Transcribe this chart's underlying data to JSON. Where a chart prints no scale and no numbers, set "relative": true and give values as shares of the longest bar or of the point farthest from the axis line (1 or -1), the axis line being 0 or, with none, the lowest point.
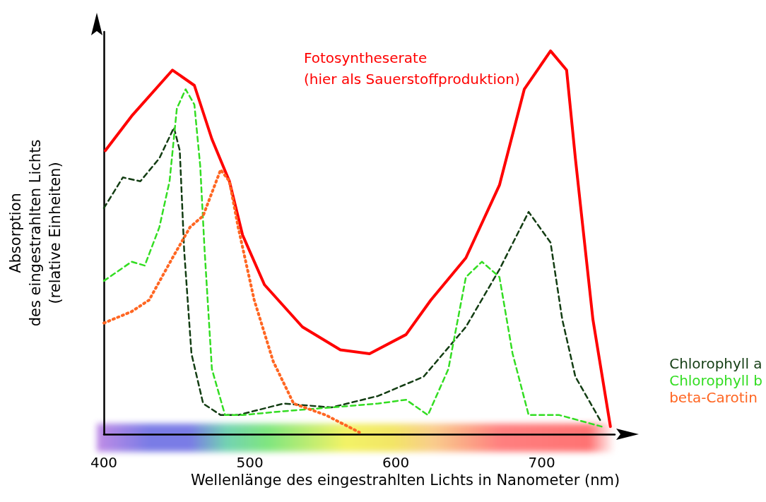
{
  "chart_data": {
    "type": "line",
    "relative": true,
    "xlabel": "Wellenlänge des eingestrahlten Lichts in Nanometer (nm)",
    "ylabel": "Absorption\ndes eingestrahlten Lichts\n(relative Einheiten)",
    "xlim": [
      400,
      750
    ],
    "xticks": [
      400,
      500,
      600,
      700
    ],
    "legend": "right",
    "grid": false,
    "marker": "none",
    "series": [
      {
        "name": "Fotosyntheserate\n(hier als Sauerstoffproduktion)",
        "color": "#ff0000",
        "line_style": "solid",
        "x": [
          401,
          419,
          447,
          462,
          474,
          486,
          495,
          510,
          536,
          562,
          582,
          607,
          624,
          648,
          671,
          688,
          706,
          717,
          723,
          735,
          747
        ],
        "values": [
          0.74,
          0.83,
          0.95,
          0.91,
          0.77,
          0.66,
          0.52,
          0.39,
          0.28,
          0.22,
          0.21,
          0.26,
          0.35,
          0.46,
          0.65,
          0.9,
          1.0,
          0.95,
          0.72,
          0.3,
          0.02
        ]
      },
      {
        "name": "Chlorophyll a",
        "color": "#133d13",
        "line_style": "dashed",
        "x": [
          400,
          413,
          425,
          438,
          448,
          452,
          455,
          460,
          468,
          480,
          492,
          523,
          556,
          588,
          619,
          648,
          671,
          691,
          706,
          714,
          723,
          741
        ],
        "values": [
          0.59,
          0.67,
          0.66,
          0.72,
          0.8,
          0.74,
          0.48,
          0.21,
          0.08,
          0.05,
          0.05,
          0.08,
          0.07,
          0.1,
          0.15,
          0.28,
          0.43,
          0.58,
          0.5,
          0.3,
          0.15,
          0.03
        ]
      },
      {
        "name": "Chlorophyll b",
        "color": "#33dd22",
        "line_style": "dashed",
        "x": [
          400,
          419,
          428,
          438,
          445,
          450,
          456,
          462,
          466,
          469,
          474,
          483,
          495,
          523,
          556,
          588,
          607,
          622,
          636,
          648,
          659,
          671,
          680,
          691,
          712,
          741
        ],
        "values": [
          0.4,
          0.45,
          0.44,
          0.54,
          0.66,
          0.85,
          0.9,
          0.86,
          0.7,
          0.48,
          0.17,
          0.05,
          0.05,
          0.06,
          0.07,
          0.08,
          0.09,
          0.05,
          0.17,
          0.41,
          0.45,
          0.41,
          0.21,
          0.05,
          0.05,
          0.02
        ]
      },
      {
        "name": "beta-Carotin",
        "color": "#ff6622",
        "line_style": "dotted",
        "x": [
          400,
          419,
          431,
          447,
          459,
          468,
          480,
          486,
          492,
          503,
          516,
          530,
          552,
          575
        ],
        "values": [
          0.29,
          0.32,
          0.35,
          0.46,
          0.54,
          0.57,
          0.69,
          0.66,
          0.54,
          0.35,
          0.19,
          0.08,
          0.05,
          0.005
        ]
      }
    ]
  }
}
